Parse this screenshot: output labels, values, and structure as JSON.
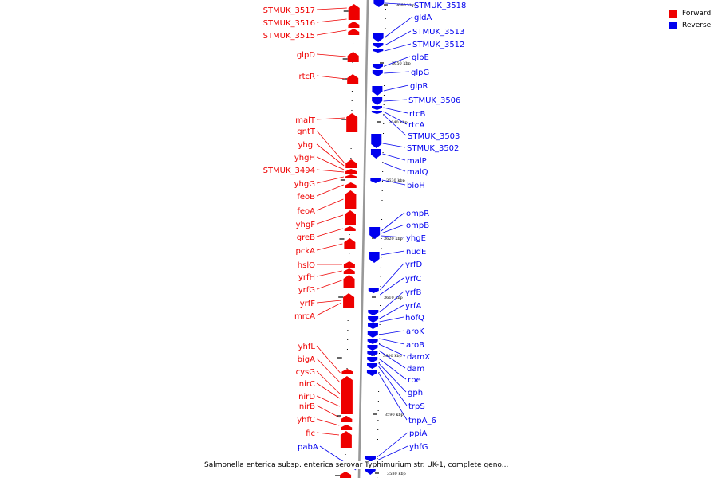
{
  "legend": [
    {
      "label": "Forward",
      "color": "#ee0000"
    },
    {
      "label": "Reverse",
      "color": "#0000ee"
    }
  ],
  "caption": "Salmonella enterica subsp. enterica serovar Typhimurium str. UK-1, complete geno...",
  "colors": {
    "forward": "#ee0000",
    "reverse": "#0000ee",
    "axis": "#999999"
  },
  "genome_view": {
    "axis_ticks": [
      "3660 kbp",
      "3650 kbp",
      "3640 kbp",
      "3630 kbp",
      "3620 kbp",
      "3610 kbp",
      "3600 kbp",
      "3590 kbp",
      "3580 kbp"
    ],
    "forward_genes": [
      "STMUK_3517",
      "STMUK_3516",
      "STMUK_3515",
      "glpD",
      "rtcR",
      "malT",
      "gntT",
      "yhgI",
      "yhgH",
      "STMUK_3494",
      "yhgG",
      "feoB",
      "feoA",
      "yhgF",
      "greB",
      "pckA",
      "hslO",
      "yrfH",
      "yrfG",
      "yrfF",
      "mrcA",
      "yhfL",
      "bigA",
      "cysG",
      "nirC",
      "nirD",
      "nirB",
      "yhfC",
      "fic"
    ],
    "reverse_genes": [
      "STMUK_3518",
      "gldA",
      "STMUK_3513",
      "STMUK_3512",
      "glpE",
      "glpG",
      "glpR",
      "STMUK_3506",
      "rtcB",
      "rtcA",
      "STMUK_3503",
      "STMUK_3502",
      "malP",
      "malQ",
      "bioH",
      "ompR",
      "ompB",
      "yhgE",
      "nudE",
      "yrfD",
      "yrfC",
      "yrfB",
      "yrfA",
      "hofQ",
      "aroK",
      "aroB",
      "damX",
      "dam",
      "rpe",
      "gph",
      "trpS",
      "tnpA_6",
      "ppiA",
      "yhfG",
      "pabA"
    ]
  }
}
